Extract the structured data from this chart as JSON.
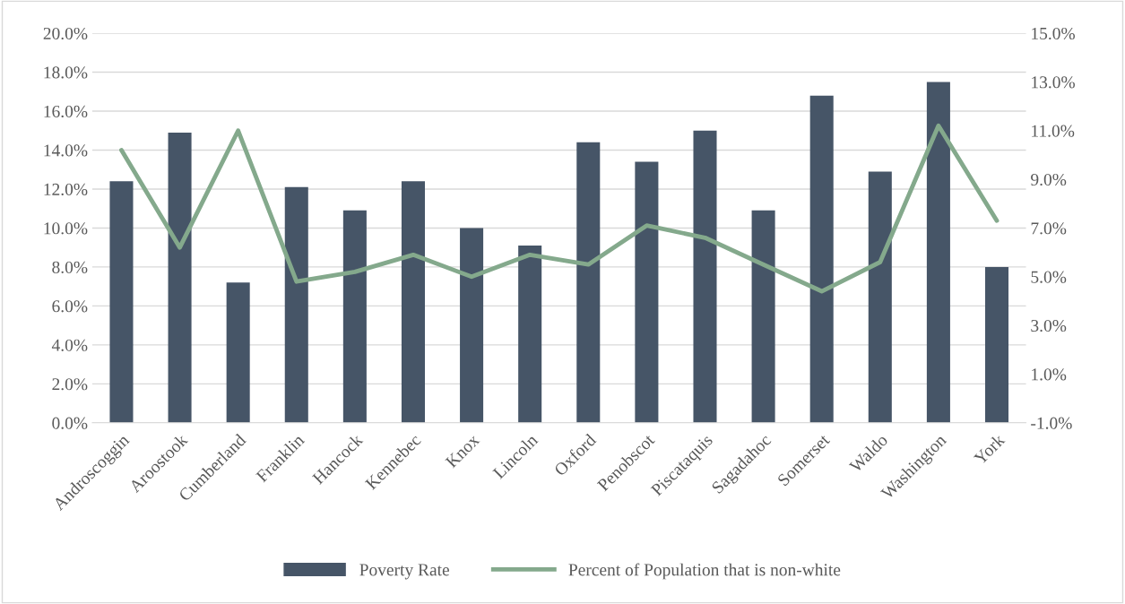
{
  "chart_data": {
    "type": "bar",
    "categories": [
      "Androscoggin",
      "Aroostook",
      "Cumberland",
      "Franklin",
      "Hancock",
      "Kennebec",
      "Knox",
      "Lincoln",
      "Oxford",
      "Penobscot",
      "Piscataquis",
      "Sagadahoc",
      "Somerset",
      "Waldo",
      "Washington",
      "York"
    ],
    "series": [
      {
        "name": "Poverty Rate",
        "color": "#465567",
        "values": [
          12.4,
          14.9,
          7.2,
          12.1,
          10.9,
          12.4,
          10.0,
          9.1,
          14.4,
          13.4,
          15.0,
          10.9,
          16.8,
          12.9,
          17.5,
          8.0
        ]
      },
      {
        "name": "Percent of Population that is non-white",
        "type": "line",
        "axis": "y2",
        "color": "#84a98c",
        "values": [
          10.2,
          6.2,
          11.0,
          4.8,
          5.2,
          5.9,
          5.0,
          5.9,
          5.5,
          7.1,
          6.6,
          5.5,
          4.4,
          5.6,
          11.2,
          7.3
        ]
      }
    ],
    "ylim": [
      0,
      20
    ],
    "yticks": [
      {
        "value": 0,
        "label": "0.0%"
      },
      {
        "value": 2,
        "label": "2.0%"
      },
      {
        "value": 4,
        "label": "4.0%"
      },
      {
        "value": 6,
        "label": "6.0%"
      },
      {
        "value": 8,
        "label": "8.0%"
      },
      {
        "value": 10,
        "label": "10.0%"
      },
      {
        "value": 12,
        "label": "12.0%"
      },
      {
        "value": 14,
        "label": "14.0%"
      },
      {
        "value": 16,
        "label": "16.0%"
      },
      {
        "value": 18,
        "label": "18.0%"
      },
      {
        "value": 20,
        "label": "20.0%"
      }
    ],
    "y2lim": [
      -1,
      15
    ],
    "y2ticks": [
      {
        "value": -1,
        "label": "-1.0%"
      },
      {
        "value": 1,
        "label": "1.0%"
      },
      {
        "value": 3,
        "label": "3.0%"
      },
      {
        "value": 5,
        "label": "5.0%"
      },
      {
        "value": 7,
        "label": "7.0%"
      },
      {
        "value": 9,
        "label": "9.0%"
      },
      {
        "value": 11,
        "label": "11.0%"
      },
      {
        "value": 13,
        "label": "13.0%"
      },
      {
        "value": 15,
        "label": "15.0%"
      }
    ],
    "grid": "y",
    "legend": "bottom",
    "marker": "none",
    "line_style": "solid"
  }
}
